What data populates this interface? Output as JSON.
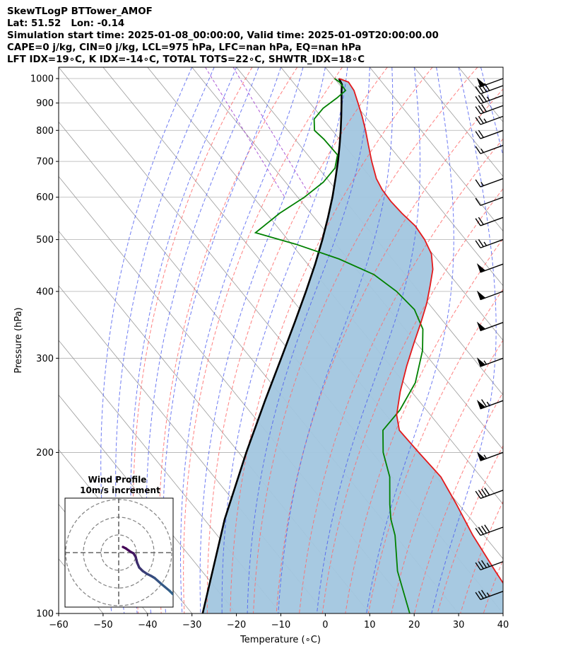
{
  "header": {
    "lines": [
      "SkewTLogP BTTower_AMOF",
      "Lat: 51.52   Lon: -0.14",
      "Simulation start time: 2025-01-08_00:00:00, Valid time: 2025-01-09T20:00:00.00",
      "CAPE=0 j/kg, CIN=0 j/kg, LCL=975 hPa, LFC=nan hPa, EQ=nan hPa",
      "LFT IDX=19∘C, K IDX=-14∘C, TOTAL TOTS=22∘C, SHWTR_IDX=18∘C"
    ]
  },
  "chart_data": {
    "type": "skewt",
    "xlabel": "Temperature (∘C)",
    "ylabel": "Pressure (hPa)",
    "xlim": [
      -60,
      40
    ],
    "ylim": [
      1050,
      100
    ],
    "y_scale": "log",
    "x_ticks": [
      "−60",
      "−50",
      "−40",
      "−30",
      "−20",
      "−10",
      "0",
      "10",
      "20",
      "30",
      "40"
    ],
    "y_ticks": [
      "100",
      "200",
      "300",
      "400",
      "500",
      "600",
      "700",
      "800",
      "900",
      "1000"
    ],
    "y_tick_values": [
      100,
      200,
      300,
      400,
      500,
      600,
      700,
      800,
      900,
      1000
    ],
    "grid": true,
    "colors": {
      "temperature": "#e31a1c",
      "dewpoint": "#008000",
      "parcel": "#000000",
      "fill": "#a2c6df",
      "dry_adiabat": "#ff6a6a",
      "moist_adiabat": "#4a5af0",
      "mixing_ratio": "#9932cc",
      "isotherm": "#9a9a9a"
    },
    "series": [
      {
        "key": "temperature",
        "points": [
          [
            1000,
            1
          ],
          [
            985,
            2.5
          ],
          [
            950,
            2.2
          ],
          [
            900,
            0.8
          ],
          [
            850,
            -0.7
          ],
          [
            800,
            -2.5
          ],
          [
            750,
            -4.6
          ],
          [
            700,
            -6.8
          ],
          [
            650,
            -8.9
          ],
          [
            620,
            -9.6
          ],
          [
            590,
            -9.8
          ],
          [
            560,
            -9.5
          ],
          [
            530,
            -8.8
          ],
          [
            500,
            -9.2
          ],
          [
            470,
            -10.3
          ],
          [
            440,
            -12.8
          ],
          [
            410,
            -16.4
          ],
          [
            380,
            -20.4
          ],
          [
            350,
            -25.2
          ],
          [
            320,
            -30.6
          ],
          [
            290,
            -36.4
          ],
          [
            260,
            -42.5
          ],
          [
            235,
            -47.6
          ],
          [
            220,
            -49.8
          ],
          [
            200,
            -49.5
          ],
          [
            180,
            -49
          ],
          [
            160,
            -50.5
          ],
          [
            140,
            -52.5
          ],
          [
            120,
            -54
          ],
          [
            100,
            -55.5
          ]
        ]
      },
      {
        "key": "dewpoint",
        "points": [
          [
            1000,
            0
          ],
          [
            985,
            0.5
          ],
          [
            950,
            0.3
          ],
          [
            920,
            -3
          ],
          [
            880,
            -8
          ],
          [
            840,
            -12
          ],
          [
            800,
            -14
          ],
          [
            770,
            -13.5
          ],
          [
            720,
            -13.3
          ],
          [
            680,
            -16.3
          ],
          [
            640,
            -21.5
          ],
          [
            600,
            -28.5
          ],
          [
            560,
            -37
          ],
          [
            515,
            -46
          ],
          [
            490,
            -39
          ],
          [
            460,
            -32
          ],
          [
            430,
            -27
          ],
          [
            400,
            -25
          ],
          [
            370,
            -24.3
          ],
          [
            340,
            -26
          ],
          [
            310,
            -30
          ],
          [
            270,
            -37.5
          ],
          [
            240,
            -46
          ],
          [
            220,
            -53.5
          ],
          [
            200,
            -57.5
          ],
          [
            180,
            -60.5
          ],
          [
            160,
            -65.5
          ],
          [
            150,
            -68
          ],
          [
            140,
            -70
          ],
          [
            120,
            -76
          ],
          [
            100,
            -81
          ]
        ]
      },
      {
        "key": "parcel",
        "points": [
          [
            1000,
            1
          ],
          [
            975,
            0.6
          ],
          [
            950,
            -0.6
          ],
          [
            900,
            -2.9
          ],
          [
            850,
            -5.4
          ],
          [
            800,
            -8.1
          ],
          [
            750,
            -11.1
          ],
          [
            700,
            -14.4
          ],
          [
            650,
            -18.1
          ],
          [
            600,
            -22.2
          ],
          [
            550,
            -26.9
          ],
          [
            500,
            -32.2
          ],
          [
            450,
            -38.3
          ],
          [
            400,
            -45.4
          ],
          [
            350,
            -53.6
          ],
          [
            300,
            -63.2
          ],
          [
            250,
            -74.6
          ],
          [
            200,
            -88.3
          ],
          [
            150,
            -105.4
          ],
          [
            100,
            -127.6
          ]
        ]
      }
    ],
    "wind_barbs": [
      {
        "pressure": 1000,
        "speed_kt": 50
      },
      {
        "pressure": 970,
        "speed_kt": 40
      },
      {
        "pressure": 930,
        "speed_kt": 35
      },
      {
        "pressure": 890,
        "speed_kt": 30
      },
      {
        "pressure": 850,
        "speed_kt": 25
      },
      {
        "pressure": 800,
        "speed_kt": 20
      },
      {
        "pressure": 750,
        "speed_kt": 15
      },
      {
        "pressure": 650,
        "speed_kt": 15
      },
      {
        "pressure": 600,
        "speed_kt": 10
      },
      {
        "pressure": 550,
        "speed_kt": 20
      },
      {
        "pressure": 500,
        "speed_kt": 25
      },
      {
        "pressure": 450,
        "speed_kt": 50
      },
      {
        "pressure": 400,
        "speed_kt": 50
      },
      {
        "pressure": 350,
        "speed_kt": 50
      },
      {
        "pressure": 300,
        "speed_kt": 55
      },
      {
        "pressure": 250,
        "speed_kt": 65
      },
      {
        "pressure": 200,
        "speed_kt": 55
      },
      {
        "pressure": 170,
        "speed_kt": 40
      },
      {
        "pressure": 145,
        "speed_kt": 40
      },
      {
        "pressure": 125,
        "speed_kt": 35
      },
      {
        "pressure": 110,
        "speed_kt": 35
      }
    ],
    "inset": {
      "title_lines": [
        "Wind Profile",
        "10m/s increment"
      ],
      "hodograph": [
        [
          -0.6,
          0.8
        ],
        [
          -1.0,
          0.6
        ],
        [
          -1.7,
          0.1
        ],
        [
          -2.1,
          -0.1
        ],
        [
          -2.4,
          -0.6
        ],
        [
          -2.5,
          -1.0
        ],
        [
          -2.6,
          -1.4
        ],
        [
          -2.9,
          -2.1
        ],
        [
          -3.4,
          -2.6
        ],
        [
          -4.0,
          -3.0
        ],
        [
          -4.6,
          -3.3
        ],
        [
          -5.1,
          -3.6
        ],
        [
          -6.0,
          -4.4
        ],
        [
          -7.2,
          -5.4
        ],
        [
          -8.0,
          -6.2
        ],
        [
          -9.5,
          -7.5
        ]
      ]
    }
  }
}
